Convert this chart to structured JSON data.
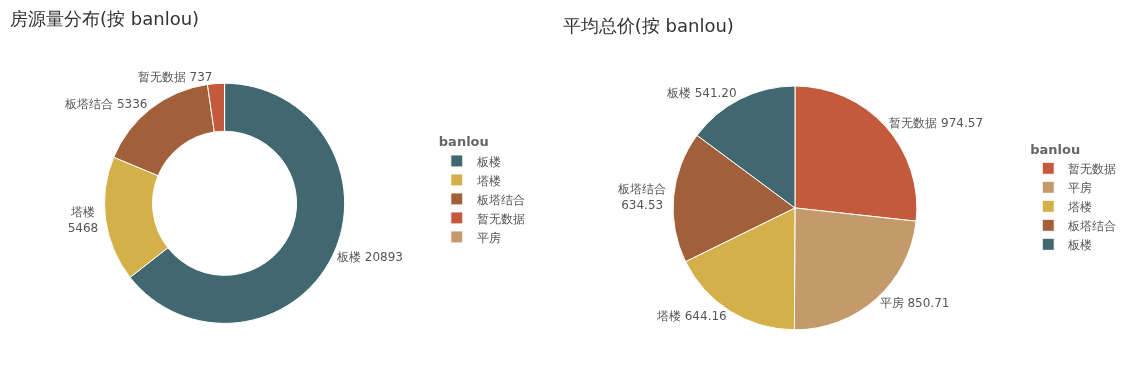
{
  "chart_data": [
    {
      "type": "donut",
      "title": "房源量分布(按 banlou)",
      "legend_title": "banlou",
      "legend": "right",
      "categories": [
        "板楼",
        "塔楼",
        "板塔结合",
        "暂无数据",
        "平房"
      ],
      "values": [
        20893,
        5468,
        5336,
        737,
        0
      ],
      "value_labels": [
        "20893",
        "5468",
        "5336",
        "737",
        null
      ],
      "colors": [
        "#416771",
        "#d4b04a",
        "#a2603a",
        "#c4593c",
        "#c49a6a"
      ]
    },
    {
      "type": "pie",
      "title": "平均总价(按 banlou)",
      "legend_title": "banlou",
      "legend": "right",
      "categories": [
        "暂无数据",
        "平房",
        "塔楼",
        "板塔结合",
        "板楼"
      ],
      "values": [
        974.57,
        850.71,
        644.16,
        634.53,
        541.2
      ],
      "value_labels": [
        "974.57",
        "850.71",
        "644.16",
        "634.53",
        "541.20"
      ],
      "colors": [
        "#c4593c",
        "#c49a6a",
        "#d4b04a",
        "#a2603a",
        "#416771"
      ]
    }
  ]
}
